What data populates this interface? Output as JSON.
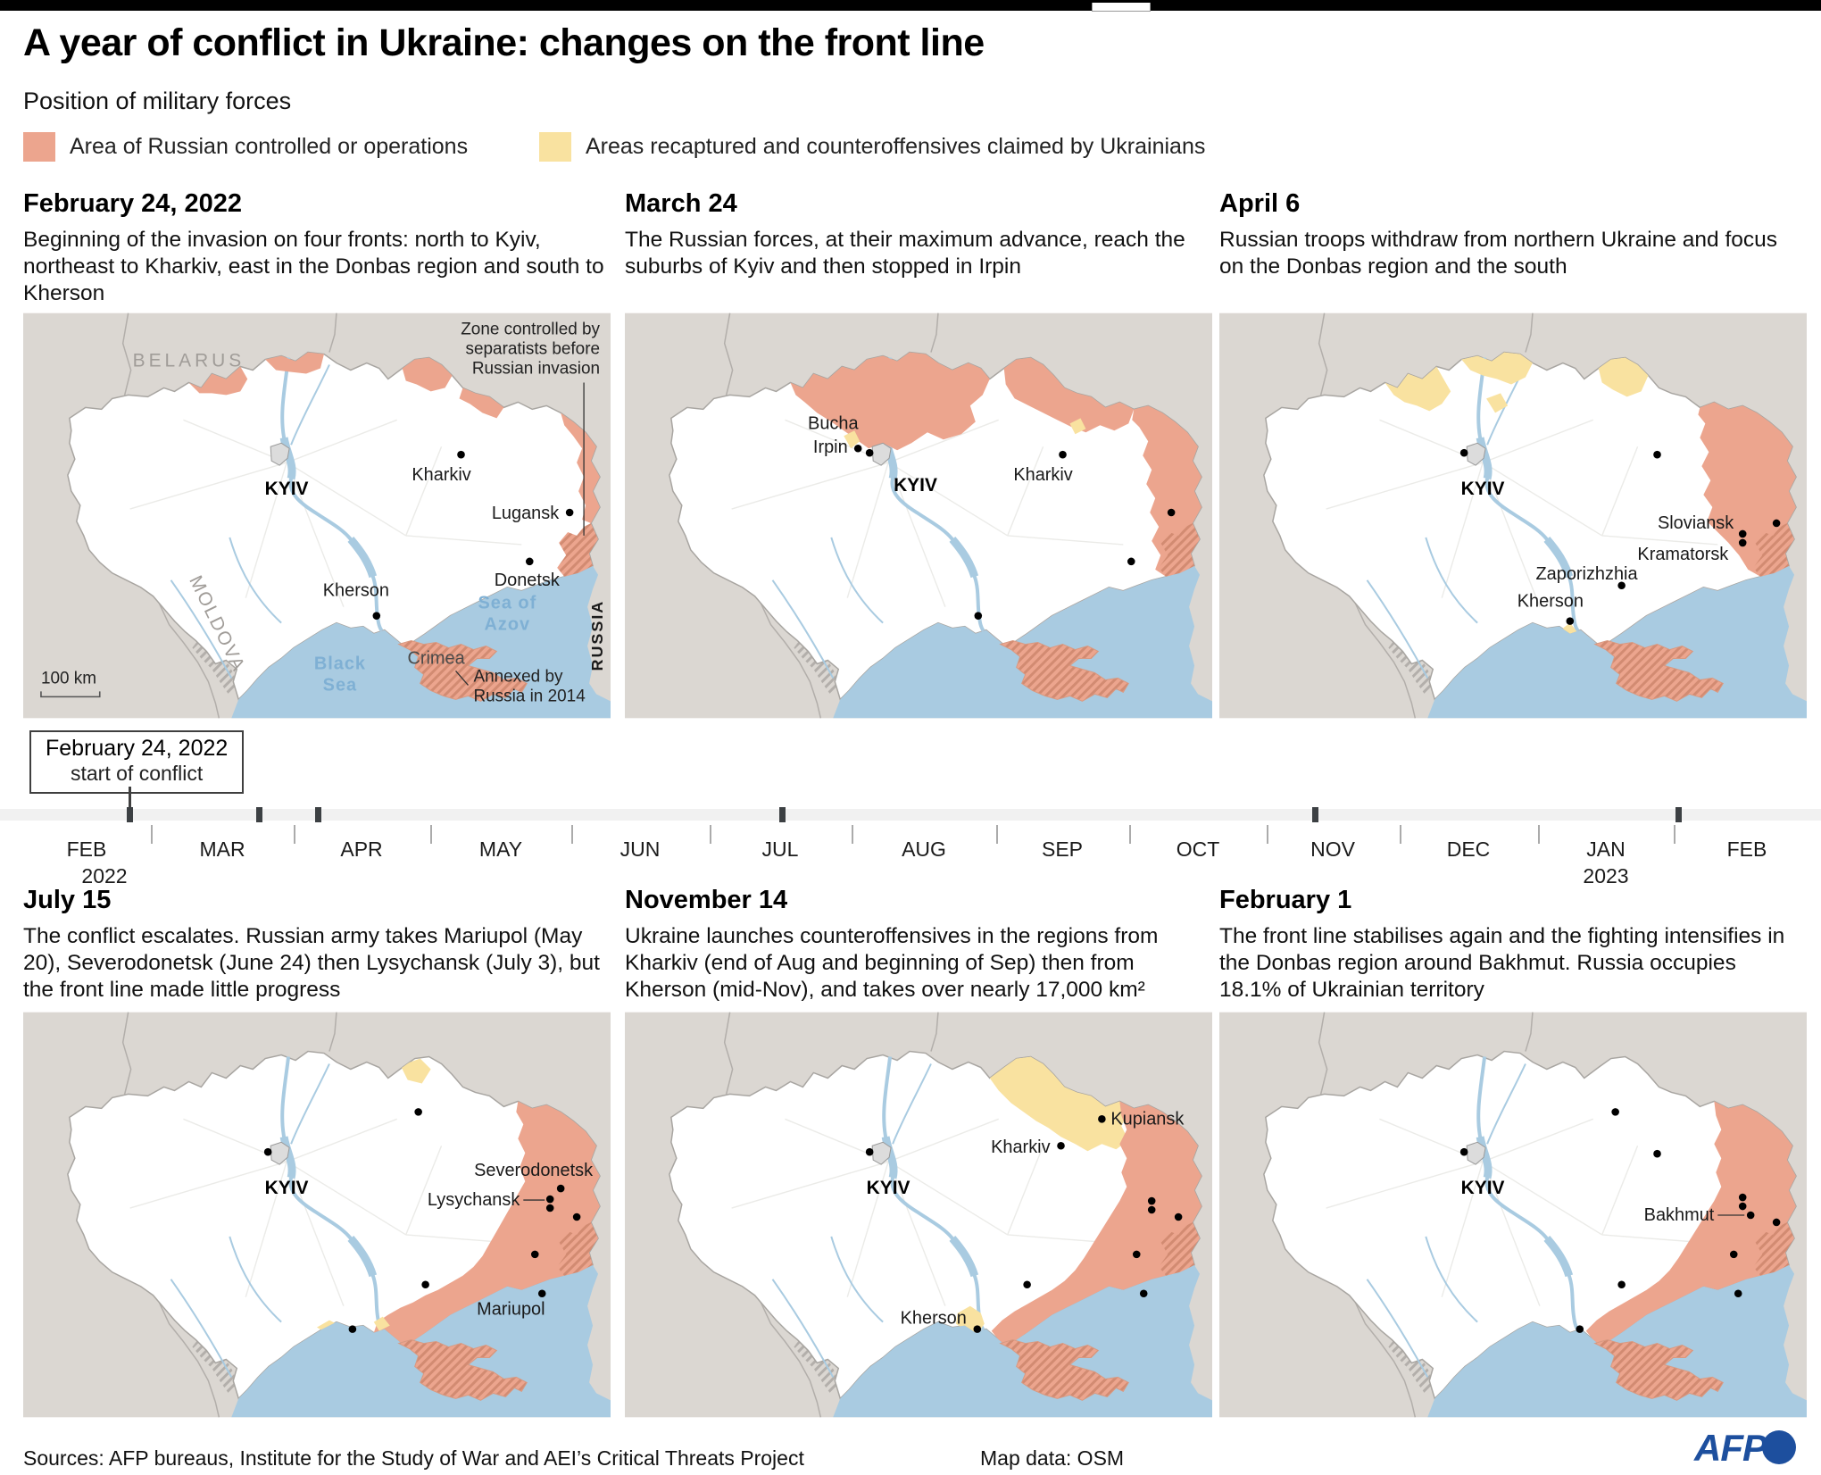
{
  "colors": {
    "russian_area": "#ECA58E",
    "ukrainian_area": "#F9E2A0",
    "sea": "#A9CBE1",
    "neighbor_land": "#DBD7D2",
    "afp_blue": "#1D4F9E",
    "timeline_bar": "#F1F1F1",
    "timeline_tick": "#3C4043"
  },
  "header": {
    "title": "A year of conflict in Ukraine: changes on the front line",
    "subtitle": "Position of military forces"
  },
  "legend": {
    "russian": "Area of Russian controlled or operations",
    "ukrainian": "Areas recaptured and counteroffensives claimed by Ukrainians"
  },
  "panels": [
    {
      "id": "m1",
      "date": "February 24, 2022",
      "description": "Beginning of the invasion on four fronts: north to Kyiv, northeast to Kharkiv, east in the Donbas region and south to Kherson"
    },
    {
      "id": "m2",
      "date": "March 24",
      "description": "The Russian forces, at their maximum advance, reach the suburbs of Kyiv and then stopped in Irpin"
    },
    {
      "id": "m3",
      "date": "April 6",
      "description": "Russian troops withdraw from northern Ukraine and focus on the Donbas region and the south"
    },
    {
      "id": "m4",
      "date": "July 15",
      "description": "The conflict escalates. Russian army takes Mariupol (May 20), Severodonetsk (June 24) then Lysychansk (July 3), but the front line made little progress"
    },
    {
      "id": "m5",
      "date": "November 14",
      "description": "Ukraine launches counteroffensives in the regions from Kharkiv (end of Aug and beginning of Sep) then from Kherson (mid-Nov), and takes over nearly 17,000 km²"
    },
    {
      "id": "m6",
      "date": "February 1",
      "description": "The front line stabilises again and the fighting intensifies in the Donbas region around Bakhmut. Russia occupies 18.1% of Ukrainian territory"
    }
  ],
  "map_labels": {
    "m1": {
      "belarus": "BELARUS",
      "moldova": "MOLDOVA",
      "russia": "RUSSIA",
      "kyiv": "KYIV",
      "kharkiv": "Kharkiv",
      "lugansk": "Lugansk",
      "donetsk": "Donetsk",
      "kherson": "Kherson",
      "crimea": "Crimea",
      "black_sea": [
        "Black",
        "Sea"
      ],
      "sea_of_azov": [
        "Sea of",
        "Azov"
      ],
      "zone_note": [
        "Zone controlled by",
        "separatists before",
        "Russian invasion"
      ],
      "annex_note": [
        "Annexed by",
        "Russia in 2014"
      ],
      "scale": "100 km"
    },
    "m2": {
      "bucha": "Bucha",
      "irpin": "Irpin",
      "kyiv": "KYIV",
      "kharkiv": "Kharkiv"
    },
    "m3": {
      "kyiv": "KYIV",
      "sloviansk": "Sloviansk",
      "kramatorsk": "Kramatorsk",
      "zaporizhzhia": "Zaporizhzhia",
      "kherson": "Kherson"
    },
    "m4": {
      "kyiv": "KYIV",
      "severodonetsk": "Severodonetsk",
      "lysychansk": "Lysychansk",
      "mariupol": "Mariupol"
    },
    "m5": {
      "kyiv": "KYIV",
      "kharkiv": "Kharkiv",
      "kupiansk": "Kupiansk",
      "kherson": "Kherson"
    },
    "m6": {
      "kyiv": "KYIV",
      "bakhmut": "Bakhmut"
    }
  },
  "timeline": {
    "callout_line1": "February 24, 2022",
    "callout_line2": "start of conflict",
    "months": [
      "FEB",
      "MAR",
      "APR",
      "MAY",
      "JUN",
      "JUL",
      "AUG",
      "SEP",
      "OCT",
      "NOV",
      "DEC",
      "JAN",
      "FEB"
    ],
    "year_start": "2022",
    "year_2023": "2023"
  },
  "footer": {
    "sources": "Sources: AFP bureaus, Institute for the Study of War and AEI’s Critical Threats Project",
    "map_data": "Map data: OSM",
    "logo": "AFP"
  }
}
